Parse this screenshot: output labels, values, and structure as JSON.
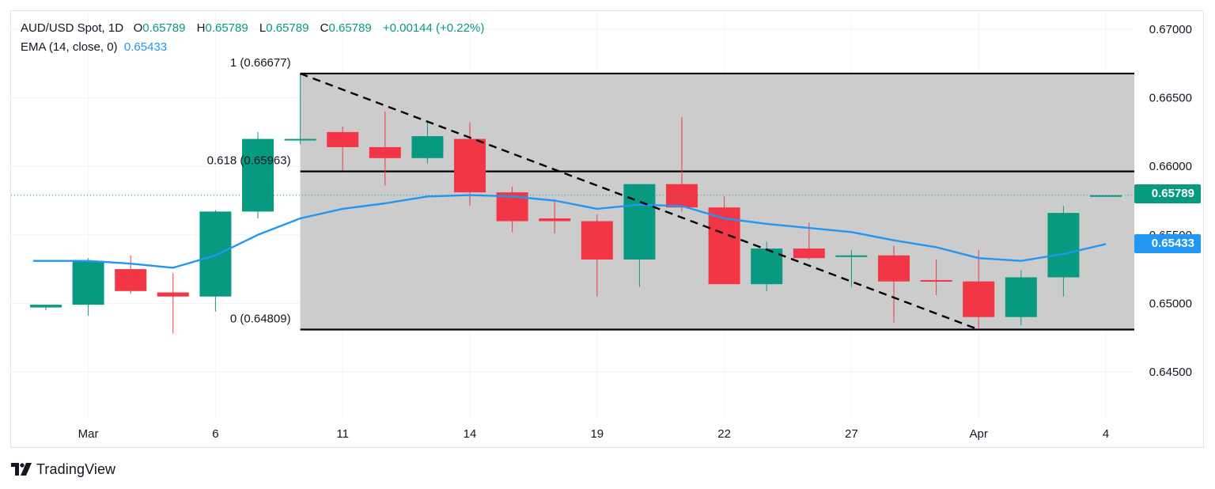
{
  "legend": {
    "symbol": "AUD/USD Spot, 1D",
    "o_key": "O",
    "o_val": "0.65789",
    "h_key": "H",
    "h_val": "0.65789",
    "l_key": "L",
    "l_val": "0.65789",
    "c_key": "C",
    "c_val": "0.65789",
    "change": "+0.00144 (+0.22%)",
    "ema_label": "EMA (14, close, 0)",
    "ema_value": "0.65433"
  },
  "price_tags": {
    "close": "0.65789",
    "ema": "0.65433"
  },
  "brand": "TradingView",
  "colors": {
    "up": "#089981",
    "down": "#f23645",
    "ema": "#2196f3",
    "fib_fill": "#cccccc",
    "fib_line": "#000000"
  },
  "chart_data": {
    "type": "candlestick",
    "ylim": [
      0.6428,
      0.6722
    ],
    "y_ticks": [
      "0.67000",
      "0.66500",
      "0.66000",
      "0.65500",
      "0.65000",
      "0.64500"
    ],
    "x_ticks": [
      {
        "i": 1,
        "label": "Mar"
      },
      {
        "i": 4,
        "label": "6"
      },
      {
        "i": 7,
        "label": "11"
      },
      {
        "i": 10,
        "label": "14"
      },
      {
        "i": 13,
        "label": "19"
      },
      {
        "i": 16,
        "label": "22"
      },
      {
        "i": 19,
        "label": "27"
      },
      {
        "i": 22,
        "label": "Apr"
      },
      {
        "i": 25,
        "label": "4"
      }
    ],
    "candles": [
      {
        "i": 0,
        "o": 0.6497,
        "h": 0.6499,
        "l": 0.6495,
        "c": 0.6499
      },
      {
        "i": 1,
        "o": 0.6499,
        "h": 0.6533,
        "l": 0.6491,
        "c": 0.6531
      },
      {
        "i": 2,
        "o": 0.6525,
        "h": 0.6535,
        "l": 0.6507,
        "c": 0.6509
      },
      {
        "i": 3,
        "o": 0.6508,
        "h": 0.6522,
        "l": 0.6478,
        "c": 0.6505
      },
      {
        "i": 4,
        "o": 0.6505,
        "h": 0.6568,
        "l": 0.6494,
        "c": 0.6567
      },
      {
        "i": 5,
        "o": 0.6567,
        "h": 0.6625,
        "l": 0.6562,
        "c": 0.662
      },
      {
        "i": 6,
        "o": 0.6619,
        "h": 0.6668,
        "l": 0.6616,
        "c": 0.662
      },
      {
        "i": 7,
        "o": 0.6625,
        "h": 0.6629,
        "l": 0.6597,
        "c": 0.6614
      },
      {
        "i": 8,
        "o": 0.6614,
        "h": 0.664,
        "l": 0.6586,
        "c": 0.6606
      },
      {
        "i": 9,
        "o": 0.6606,
        "h": 0.6633,
        "l": 0.6602,
        "c": 0.6622
      },
      {
        "i": 10,
        "o": 0.662,
        "h": 0.6632,
        "l": 0.6571,
        "c": 0.6581
      },
      {
        "i": 11,
        "o": 0.6581,
        "h": 0.6585,
        "l": 0.6552,
        "c": 0.656
      },
      {
        "i": 12,
        "o": 0.6562,
        "h": 0.6576,
        "l": 0.6551,
        "c": 0.656
      },
      {
        "i": 13,
        "o": 0.656,
        "h": 0.6565,
        "l": 0.6505,
        "c": 0.6532
      },
      {
        "i": 14,
        "o": 0.6532,
        "h": 0.6587,
        "l": 0.6512,
        "c": 0.6587
      },
      {
        "i": 15,
        "o": 0.6587,
        "h": 0.6636,
        "l": 0.6567,
        "c": 0.657
      },
      {
        "i": 16,
        "o": 0.657,
        "h": 0.6578,
        "l": 0.6514,
        "c": 0.6514
      },
      {
        "i": 17,
        "o": 0.6514,
        "h": 0.6545,
        "l": 0.6509,
        "c": 0.654
      },
      {
        "i": 18,
        "o": 0.654,
        "h": 0.6559,
        "l": 0.6532,
        "c": 0.6533
      },
      {
        "i": 19,
        "o": 0.6534,
        "h": 0.6539,
        "l": 0.6512,
        "c": 0.6535
      },
      {
        "i": 20,
        "o": 0.6535,
        "h": 0.6542,
        "l": 0.6486,
        "c": 0.6516
      },
      {
        "i": 21,
        "o": 0.6517,
        "h": 0.6532,
        "l": 0.6506,
        "c": 0.6516
      },
      {
        "i": 22,
        "o": 0.6516,
        "h": 0.6539,
        "l": 0.6481,
        "c": 0.649
      },
      {
        "i": 23,
        "o": 0.649,
        "h": 0.6524,
        "l": 0.6484,
        "c": 0.6519
      },
      {
        "i": 24,
        "o": 0.6519,
        "h": 0.6571,
        "l": 0.6505,
        "c": 0.6566
      },
      {
        "i": 25,
        "o": 0.65789,
        "h": 0.65789,
        "l": 0.65789,
        "c": 0.65789
      }
    ],
    "ema": {
      "label": "EMA (14, close, 0)",
      "points": [
        {
          "i": -0.3,
          "v": 0.6531
        },
        {
          "i": 1,
          "v": 0.6531
        },
        {
          "i": 2,
          "v": 0.6529
        },
        {
          "i": 3,
          "v": 0.6526
        },
        {
          "i": 4,
          "v": 0.6535
        },
        {
          "i": 5,
          "v": 0.655
        },
        {
          "i": 6,
          "v": 0.6562
        },
        {
          "i": 7,
          "v": 0.6569
        },
        {
          "i": 8,
          "v": 0.6573
        },
        {
          "i": 9,
          "v": 0.6578
        },
        {
          "i": 10,
          "v": 0.6579
        },
        {
          "i": 11,
          "v": 0.6578
        },
        {
          "i": 12,
          "v": 0.6575
        },
        {
          "i": 13,
          "v": 0.6569
        },
        {
          "i": 14,
          "v": 0.6572
        },
        {
          "i": 15,
          "v": 0.6571
        },
        {
          "i": 16,
          "v": 0.6562
        },
        {
          "i": 17,
          "v": 0.6558
        },
        {
          "i": 18,
          "v": 0.6555
        },
        {
          "i": 19,
          "v": 0.6552
        },
        {
          "i": 20,
          "v": 0.6546
        },
        {
          "i": 21,
          "v": 0.6541
        },
        {
          "i": 22,
          "v": 0.6533
        },
        {
          "i": 23,
          "v": 0.6531
        },
        {
          "i": 24,
          "v": 0.6536
        },
        {
          "i": 25,
          "v": 0.65433
        }
      ]
    },
    "fib": {
      "start_i": 6,
      "end_i": 28.8,
      "levels": [
        {
          "ratio_label": "1 (0.66677)",
          "value": 0.66677
        },
        {
          "ratio_label": "0.618 (0.65963)",
          "value": 0.65963
        },
        {
          "ratio_label": "0 (0.64809)",
          "value": 0.64809
        }
      ],
      "trendline": {
        "from": {
          "i": 6,
          "v": 0.66677
        },
        "to": {
          "i": 22,
          "v": 0.64809
        }
      }
    },
    "last_price": 0.65789
  }
}
